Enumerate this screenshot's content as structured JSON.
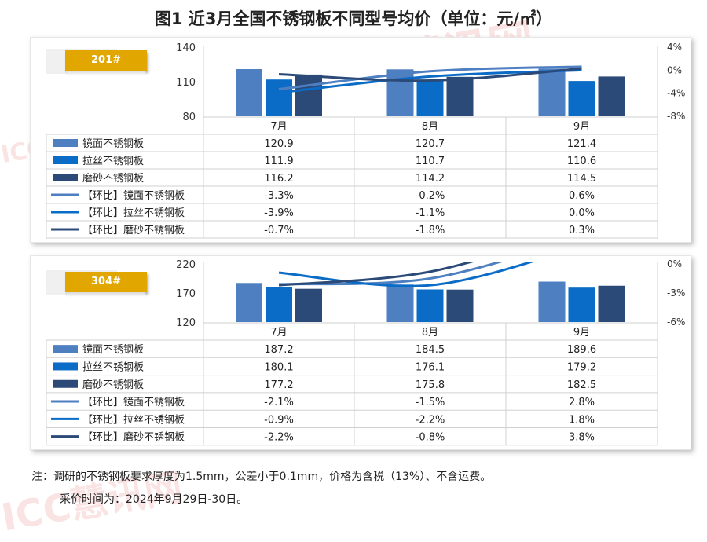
{
  "title": "图1  近3月全国不锈钢板不同型号均价（单位：元/㎡）",
  "watermark": "ICC慧讯网",
  "colors": {
    "bar_mirror": "#4e7fc1",
    "bar_brushed": "#0a6cc6",
    "bar_sanded": "#2b4a78",
    "badge": "#e2a600",
    "grid": "#d0d0d0"
  },
  "chart_data": [
    {
      "type": "bar",
      "badge": "201#",
      "categories": [
        "7月",
        "8月",
        "9月"
      ],
      "y_ticks": [
        "140",
        "110",
        "80"
      ],
      "ylim": [
        80,
        140
      ],
      "y2_ticks": [
        "4%",
        "0%",
        "-4%",
        "-8%"
      ],
      "y2lim": [
        -8,
        4
      ],
      "series": [
        {
          "name": "镜面不锈钢板",
          "kind": "bar",
          "values": [
            120.9,
            120.7,
            121.4
          ],
          "labels": [
            "120.9",
            "120.7",
            "121.4"
          ]
        },
        {
          "name": "拉丝不锈钢板",
          "kind": "bar",
          "values": [
            111.9,
            110.7,
            110.6
          ],
          "labels": [
            "111.9",
            "110.7",
            "110.6"
          ]
        },
        {
          "name": "磨砂不锈钢板",
          "kind": "bar",
          "values": [
            116.2,
            114.2,
            114.5
          ],
          "labels": [
            "116.2",
            "114.2",
            "114.5"
          ]
        },
        {
          "name": "【环比】镜面不锈钢板",
          "kind": "line",
          "values": [
            -3.3,
            -0.2,
            0.6
          ],
          "labels": [
            "-3.3%",
            "-0.2%",
            "0.6%"
          ]
        },
        {
          "name": "【环比】拉丝不锈钢板",
          "kind": "line",
          "values": [
            -3.9,
            -1.1,
            0.0
          ],
          "labels": [
            "-3.9%",
            "-1.1%",
            "0.0%"
          ]
        },
        {
          "name": "【环比】磨砂不锈钢板",
          "kind": "line",
          "values": [
            -0.7,
            -1.8,
            0.3
          ],
          "labels": [
            "-0.7%",
            "-1.8%",
            "0.3%"
          ]
        }
      ]
    },
    {
      "type": "bar",
      "badge": "304#",
      "categories": [
        "7月",
        "8月",
        "9月"
      ],
      "y_ticks": [
        "220",
        "170",
        "120"
      ],
      "ylim": [
        120,
        220
      ],
      "y2_ticks": [
        "0%",
        "-3%",
        "-6%"
      ],
      "y2lim": [
        -6,
        0
      ],
      "series": [
        {
          "name": "镜面不锈钢板",
          "kind": "bar",
          "values": [
            187.2,
            184.5,
            189.6
          ],
          "labels": [
            "187.2",
            "184.5",
            "189.6"
          ]
        },
        {
          "name": "拉丝不锈钢板",
          "kind": "bar",
          "values": [
            180.1,
            176.1,
            179.2
          ],
          "labels": [
            "180.1",
            "176.1",
            "179.2"
          ]
        },
        {
          "name": "磨砂不锈钢板",
          "kind": "bar",
          "values": [
            177.2,
            175.8,
            182.5
          ],
          "labels": [
            "177.2",
            "175.8",
            "182.5"
          ]
        },
        {
          "name": "【环比】镜面不锈钢板",
          "kind": "line",
          "values": [
            -2.1,
            -1.5,
            2.8
          ],
          "labels": [
            "-2.1%",
            "-1.5%",
            "2.8%"
          ]
        },
        {
          "name": "【环比】拉丝不锈钢板",
          "kind": "line",
          "values": [
            -0.9,
            -2.2,
            1.8
          ],
          "labels": [
            "-0.9%",
            "-2.2%",
            "1.8%"
          ]
        },
        {
          "name": "【环比】磨砂不锈钢板",
          "kind": "line",
          "values": [
            -2.2,
            -0.8,
            3.8
          ],
          "labels": [
            "-2.2%",
            "-0.8%",
            "3.8%"
          ]
        }
      ]
    }
  ],
  "notes": {
    "line1": "注：调研的不锈钢板要求厚度为1.5mm，公差小于0.1mm，价格为含税（13%）、不含运费。",
    "line2": "采价时间为：2024年9月29日-30日。"
  }
}
